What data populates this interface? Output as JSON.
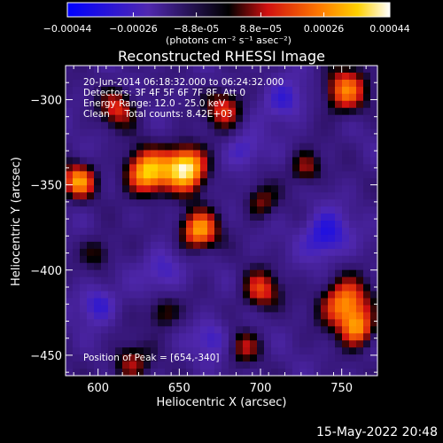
{
  "chart_data": {
    "type": "heatmap",
    "title": "Reconstructed RHESSI Image",
    "xlabel": "Heliocentric X (arcsec)",
    "ylabel": "Heliocentric Y (arcsec)",
    "xlim": [
      580,
      772
    ],
    "ylim": [
      -462,
      -280
    ],
    "xticks": [
      600,
      650,
      700,
      750
    ],
    "yticks": [
      -300,
      -350,
      -400,
      -450
    ],
    "colorbar": {
      "ticks": [
        "-0.00044",
        "-0.00026",
        "-8.8e-05",
        "8.8e-05",
        "0.00026",
        "0.00044"
      ],
      "unit": "(photons cm⁻² s⁻¹ asec⁻²)",
      "range": [
        -0.00044,
        0.00044
      ],
      "colormap": "blue-purple-black-red-orange-yellow-white"
    },
    "annotations": [
      "20-Jun-2014 06:18:32.000 to 06:24:32.000",
      "Detectors: 3F 4F 5F 6F 7F 8F, Att 0",
      "Energy Range: 12.0 - 25.0 keV",
      "Clean     Total counts: 8.42E+03",
      "Position of Peak = [654,-340]"
    ],
    "peak": [
      654,
      -340
    ],
    "sources": [
      {
        "x": 654,
        "y": -340,
        "amp": 1.0,
        "sigma": 9
      },
      {
        "x": 630,
        "y": -343,
        "amp": 0.85,
        "sigma": 9
      },
      {
        "x": 662,
        "y": -377,
        "amp": 0.75,
        "sigma": 8
      },
      {
        "x": 588,
        "y": -348,
        "amp": 0.7,
        "sigma": 7
      },
      {
        "x": 752,
        "y": -295,
        "amp": 0.65,
        "sigma": 9
      },
      {
        "x": 752,
        "y": -420,
        "amp": 0.75,
        "sigma": 10
      },
      {
        "x": 760,
        "y": -435,
        "amp": 0.6,
        "sigma": 7
      },
      {
        "x": 700,
        "y": -412,
        "amp": 0.5,
        "sigma": 8
      },
      {
        "x": 678,
        "y": -305,
        "amp": 0.5,
        "sigma": 8
      },
      {
        "x": 612,
        "y": -305,
        "amp": 0.45,
        "sigma": 8
      },
      {
        "x": 728,
        "y": -340,
        "amp": 0.4,
        "sigma": 7
      },
      {
        "x": 700,
        "y": -360,
        "amp": 0.35,
        "sigma": 7
      },
      {
        "x": 620,
        "y": -455,
        "amp": 0.4,
        "sigma": 8
      },
      {
        "x": 640,
        "y": -425,
        "amp": 0.35,
        "sigma": 7
      },
      {
        "x": 690,
        "y": -445,
        "amp": 0.35,
        "sigma": 7
      },
      {
        "x": 600,
        "y": -390,
        "amp": 0.3,
        "sigma": 7
      },
      {
        "x": 740,
        "y": -380,
        "amp": -0.45,
        "sigma": 10
      },
      {
        "x": 715,
        "y": -300,
        "amp": -0.35,
        "sigma": 9
      },
      {
        "x": 690,
        "y": -330,
        "amp": -0.3,
        "sigma": 8
      },
      {
        "x": 640,
        "y": -400,
        "amp": -0.3,
        "sigma": 9
      },
      {
        "x": 600,
        "y": -420,
        "amp": -0.35,
        "sigma": 8
      },
      {
        "x": 670,
        "y": -440,
        "amp": -0.3,
        "sigma": 8
      }
    ]
  },
  "timestamp": "15-May-2022 20:48",
  "colors": {
    "background": "#000000",
    "text": "#ffffff"
  }
}
